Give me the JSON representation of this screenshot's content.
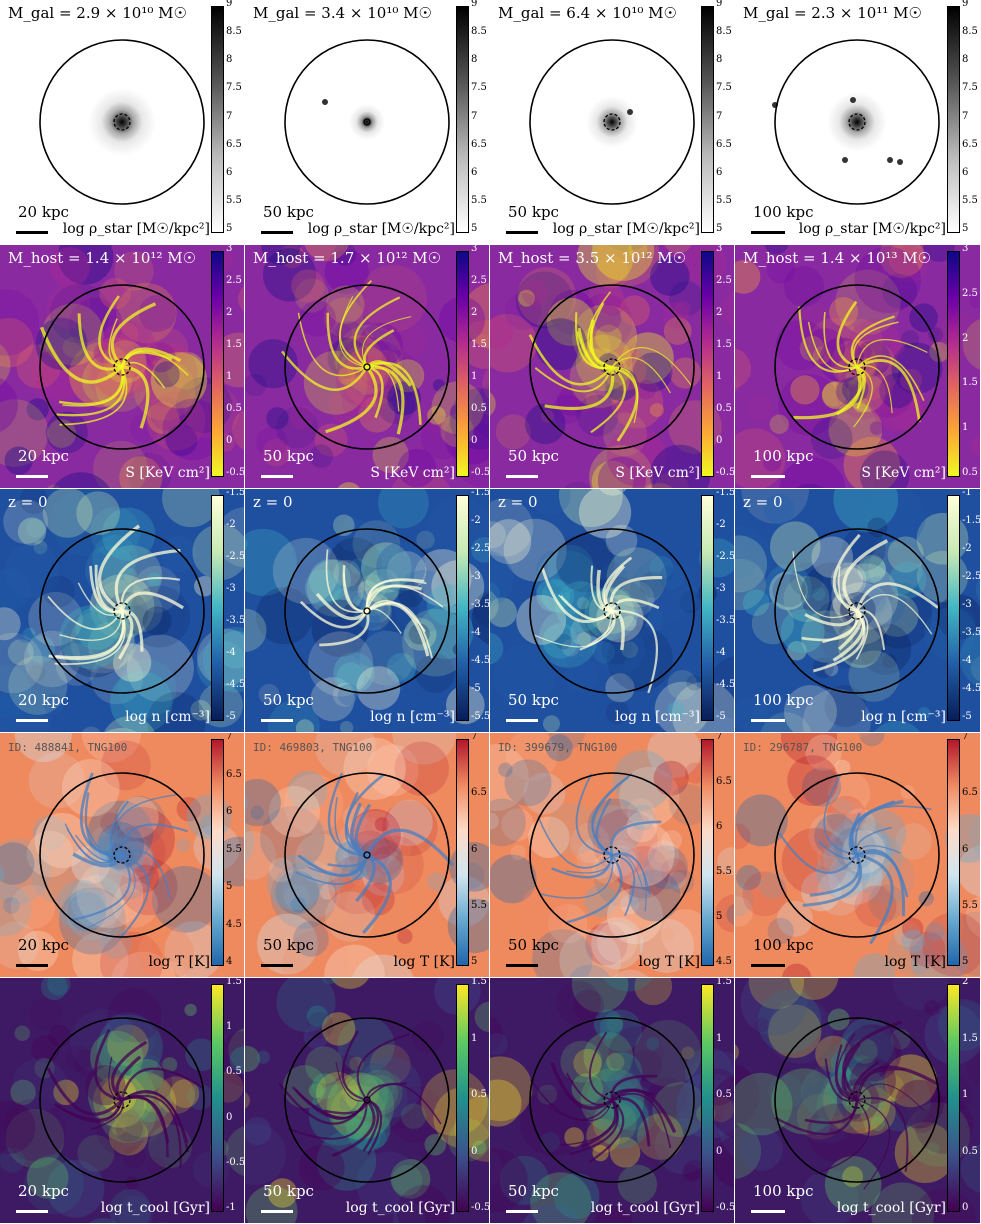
{
  "columns": [
    {
      "mgal": "M_gal = 2.9 × 10¹⁰ M☉",
      "mhost": "M_host = 1.4 × 10¹² M☉",
      "z": "z = 0",
      "id": "ID: 488841, TNG100",
      "scale": "20 kpc"
    },
    {
      "mgal": "M_gal = 3.4 × 10¹⁰ M☉",
      "mhost": "M_host = 1.7 × 10¹² M☉",
      "z": "z = 0",
      "id": "ID: 469803, TNG100",
      "scale": "50 kpc"
    },
    {
      "mgal": "M_gal = 6.4 × 10¹⁰ M☉",
      "mhost": "M_host = 3.5 × 10¹² M☉",
      "z": "z = 0",
      "id": "ID: 399679, TNG100",
      "scale": "50 kpc"
    },
    {
      "mgal": "M_gal = 2.3 × 10¹¹ M☉",
      "mhost": "M_host = 1.4 × 10¹³ M☉",
      "z": "z = 0",
      "id": "ID: 296787, TNG100",
      "scale": "100 kpc"
    }
  ],
  "rows": [
    {
      "key": "star",
      "colorbar_label": "log ρ_star [M☉/kpc²]",
      "palette": [
        "#ffffff",
        "#e6e6e6",
        "#b0b0b0",
        "#5a5a5a",
        "#000000"
      ],
      "ticks": [
        [
          "9",
          "8.5",
          "8",
          "7.5",
          "7",
          "6.5",
          "6",
          "5.5",
          "5"
        ],
        [
          "9",
          "8.5",
          "8",
          "7.5",
          "7",
          "6.5",
          "6",
          "5.5",
          "5"
        ],
        [
          "9",
          "8.5",
          "8",
          "7.5",
          "7",
          "6.5",
          "6",
          "5.5",
          "5"
        ],
        [
          "9",
          "8.5",
          "8",
          "7.5",
          "7",
          "6.5",
          "6",
          "5.5",
          "5"
        ]
      ]
    },
    {
      "key": "entropy",
      "colorbar_label": "S [KeV cm²]",
      "palette": [
        "#f0f921",
        "#fca636",
        "#e16462",
        "#b12a90",
        "#6a00a8",
        "#0d0887"
      ],
      "ticks": [
        [
          "3",
          "2.5",
          "2",
          "1.5",
          "1",
          "0.5",
          "0",
          "-0.5"
        ],
        [
          "3",
          "2.5",
          "2",
          "1.5",
          "1",
          "0.5",
          "0",
          "-0.5"
        ],
        [
          "3",
          "2.5",
          "2",
          "1.5",
          "1",
          "0.5",
          "0",
          "-0.5"
        ],
        [
          "3",
          "2.5",
          "2",
          "1.5",
          "1",
          "0.5"
        ]
      ]
    },
    {
      "key": "density",
      "colorbar_label": "log n [cm⁻³]",
      "palette": [
        "#ffffd9",
        "#c7e9b4",
        "#41b6c4",
        "#225ea8",
        "#081d58"
      ],
      "ticks": [
        [
          "-1.5",
          "-2",
          "-2.5",
          "-3",
          "-3.5",
          "-4",
          "-4.5",
          "-5"
        ],
        [
          "-1.5",
          "-2",
          "-2.5",
          "-3",
          "-3.5",
          "-4",
          "-4.5",
          "-5",
          "-5.5"
        ],
        [
          "-1.5",
          "-2",
          "-2.5",
          "-3",
          "-3.5",
          "-4",
          "-4.5",
          "-5"
        ],
        [
          "-1",
          "-1.5",
          "-2",
          "-2.5",
          "-3",
          "-3.5",
          "-4",
          "-4.5",
          "-5"
        ]
      ]
    },
    {
      "key": "temperature",
      "colorbar_label": "log T [K]",
      "palette": [
        "#b2182b",
        "#ef8a62",
        "#fddbc7",
        "#d1e5f0",
        "#67a9cf",
        "#2166ac"
      ],
      "ticks": [
        [
          "7",
          "6.5",
          "6",
          "5.5",
          "5",
          "4.5",
          "4"
        ],
        [
          "7",
          "6.5",
          "6",
          "5.5",
          "5"
        ],
        [
          "7",
          "6.5",
          "6",
          "5.5",
          "5",
          "4.5"
        ],
        [
          "7",
          "6.5",
          "6",
          "5.5",
          "5"
        ]
      ]
    },
    {
      "key": "tcool",
      "colorbar_label": "log t_cool [Gyr]",
      "palette": [
        "#440154",
        "#3b528b",
        "#21918c",
        "#5ec962",
        "#fde725"
      ],
      "ticks": [
        [
          "1.5",
          "1",
          "0.5",
          "0",
          "-0.5",
          "-1"
        ],
        [
          "1.5",
          "1",
          "0.5",
          "0",
          "-0.5"
        ],
        [
          "1.5",
          "1",
          "0.5",
          "0",
          "-0.5"
        ],
        [
          "2",
          "1.5",
          "1",
          "0.5",
          "0"
        ]
      ]
    }
  ]
}
